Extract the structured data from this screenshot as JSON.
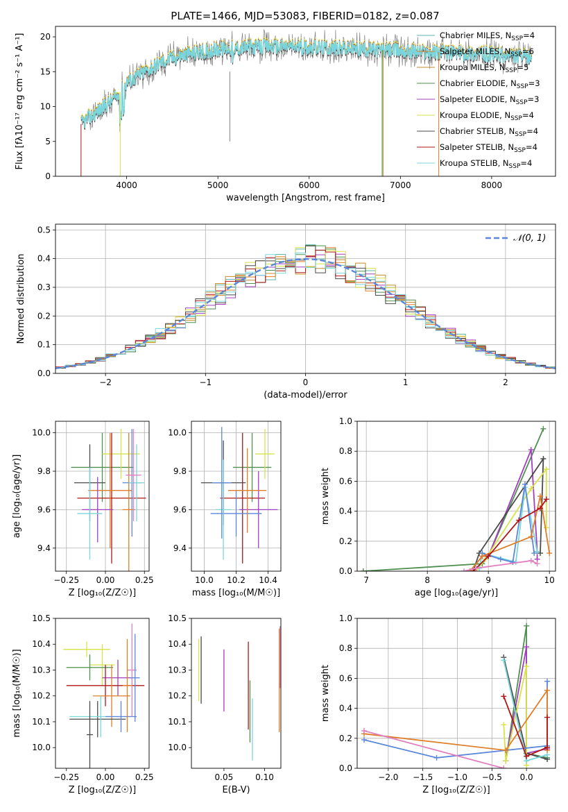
{
  "colors": {
    "Chabrier MILES": "#5bb4b0",
    "Salpeter MILES": "#e07d28",
    "Kroupa MILES": "#c58a2b",
    "Chabrier ELODIE": "#4f8f4f",
    "Salpeter ELODIE": "#a33dbd",
    "Kroupa ELODIE": "#d7e24a",
    "Chabrier STELIB": "#4a4a4a",
    "Salpeter STELIB": "#b01515",
    "Kroupa STELIB": "#78d6dc",
    "extra_blue": "#5b86d9",
    "extra_pink": "#e07fbf",
    "normal_curve": "#5b86d9"
  },
  "chart_data": [
    {
      "id": "spectrum",
      "type": "line",
      "title": "PLATE=1466, MJD=53083, FIBERID=0182, z=0.087",
      "xlabel": "wavelength [Angstrom, rest frame]",
      "ylabel": "Flux [fλ10⁻¹⁷ erg cm⁻² s⁻¹ A⁻¹]",
      "xlim": [
        3220,
        8700
      ],
      "ylim": [
        0,
        21.5
      ],
      "xticks": [
        4000,
        5000,
        6000,
        7000,
        8000
      ],
      "yticks": [
        0,
        5,
        10,
        15,
        20
      ],
      "legend": "top-right",
      "legend_entries": [
        {
          "label": "Chabrier MILES, N",
          "sub": "SSP",
          "tail": "=4"
        },
        {
          "label": "Salpeter MILES, N",
          "sub": "SSP",
          "tail": "=6"
        },
        {
          "label": "Kroupa MILES, N",
          "sub": "SSP",
          "tail": "=5"
        },
        {
          "label": "Chabrier ELODIE, N",
          "sub": "SSP",
          "tail": "=3"
        },
        {
          "label": "Salpeter ELODIE, N",
          "sub": "SSP",
          "tail": "=3"
        },
        {
          "label": "Kroupa ELODIE, N",
          "sub": "SSP",
          "tail": "=4"
        },
        {
          "label": "Chabrier STELIB, N",
          "sub": "SSP",
          "tail": "=4"
        },
        {
          "label": "Salpeter STELIB, N",
          "sub": "SSP",
          "tail": "=4"
        },
        {
          "label": "Kroupa STELIB, N",
          "sub": "SSP",
          "tail": "=4"
        }
      ],
      "continuum": {
        "x": [
          3500,
          3700,
          3900,
          4000,
          4200,
          4400,
          4600,
          4800,
          5000,
          5200,
          5400,
          5600,
          5800,
          6000,
          6200,
          6400,
          6600,
          6800,
          7000,
          7200,
          7400,
          7600,
          7800,
          8000,
          8200,
          8400
        ],
        "y": [
          7.5,
          9.5,
          11.5,
          13.5,
          15.0,
          16.5,
          17.3,
          17.8,
          18.2,
          18.4,
          18.5,
          18.6,
          18.6,
          18.5,
          18.4,
          18.3,
          18.2,
          18.1,
          18.0,
          17.9,
          17.8,
          17.7,
          17.6,
          17.4,
          17.2,
          17.0
        ]
      }
    },
    {
      "id": "residuals",
      "type": "histogram",
      "xlabel": "(data-model)/error",
      "ylabel": "Normed distribution",
      "xlim": [
        -2.5,
        2.5
      ],
      "ylim": [
        0,
        0.52
      ],
      "xticks": [
        -2,
        -1,
        0,
        1,
        2
      ],
      "xticklabels": [
        "−2",
        "−1",
        "0",
        "1",
        "2"
      ],
      "yticks": [
        0.0,
        0.1,
        0.2,
        0.3,
        0.4,
        0.5
      ],
      "yticklabels": [
        "0.0",
        "0.1",
        "0.2",
        "0.3",
        "0.4",
        "0.5"
      ],
      "bin_width": 0.1,
      "legend": "top-right",
      "normal_label": "𝒩(0, 1)",
      "normal": {
        "mean": 0,
        "sigma": 1
      }
    },
    {
      "id": "age_vs_Z",
      "type": "errorbar",
      "xlabel": "Z [log₁₀(Z/Z☉)]",
      "ylabel": "age  [log₁₀(age/yr)]",
      "xlim": [
        -0.32,
        0.28
      ],
      "ylim": [
        9.28,
        10.06
      ],
      "xticks": [
        -0.25,
        0.0,
        0.25
      ],
      "xticklabels": [
        "−0.25",
        "0.00",
        "0.25"
      ],
      "yticks": [
        9.4,
        9.6,
        9.8,
        10.0
      ],
      "yticklabels": [
        "9.4",
        "9.6",
        "9.8",
        "10.0"
      ],
      "points": [
        {
          "x": -0.02,
          "xerr": 0.2,
          "y": 9.82,
          "yerr": 0.18,
          "c": "#4f8f4f"
        },
        {
          "x": 0.1,
          "xerr": 0.12,
          "y": 9.89,
          "yerr": 0.13,
          "c": "#d7e24a"
        },
        {
          "x": -0.1,
          "xerr": 0.1,
          "y": 9.74,
          "yerr": 0.2,
          "c": "#4a4a4a"
        },
        {
          "x": 0.04,
          "xerr": 0.22,
          "y": 9.66,
          "yerr": 0.34,
          "c": "#b01515"
        },
        {
          "x": 0.03,
          "xerr": 0.14,
          "y": 9.7,
          "yerr": 0.3,
          "c": "#e07d28"
        },
        {
          "x": -0.05,
          "xerr": 0.1,
          "y": 9.6,
          "yerr": 0.17,
          "c": "#a33dbd"
        },
        {
          "x": 0.17,
          "xerr": 0.06,
          "y": 9.74,
          "yerr": 0.28,
          "c": "#5b86d9"
        },
        {
          "x": 0.15,
          "xerr": 0.04,
          "y": 9.6,
          "yerr": 0.4,
          "c": "#e07d28"
        },
        {
          "x": -0.1,
          "xerr": 0.08,
          "y": 9.58,
          "yerr": 0.24,
          "c": "#78d6dc"
        },
        {
          "x": 0.2,
          "xerr": 0.05,
          "y": 9.74,
          "yerr": 0.2,
          "c": "#78d6dc"
        },
        {
          "x": 0.18,
          "xerr": 0.05,
          "y": 9.78,
          "yerr": 0.24,
          "c": "#e07fbf"
        }
      ]
    },
    {
      "id": "age_vs_mass",
      "type": "errorbar",
      "xlabel": "mass [log₁₀(M/M☉)]",
      "ylabel": "",
      "xlim": [
        9.92,
        10.48
      ],
      "ylim": [
        9.28,
        10.06
      ],
      "xticks": [
        10.0,
        10.2,
        10.4
      ],
      "xticklabels": [
        "10.0",
        "10.2",
        "10.4"
      ],
      "yticks": [
        9.4,
        9.6,
        9.8,
        10.0
      ],
      "yticklabels": [
        "9.4",
        "9.6",
        "9.8",
        "10.0"
      ],
      "points": [
        {
          "x": 10.12,
          "xerr": 0.14,
          "y": 9.74,
          "yerr": 0.22,
          "c": "#4a4a4a"
        },
        {
          "x": 10.3,
          "xerr": 0.12,
          "y": 9.82,
          "yerr": 0.18,
          "c": "#4f8f4f"
        },
        {
          "x": 10.24,
          "xerr": 0.14,
          "y": 9.66,
          "yerr": 0.34,
          "c": "#b01515"
        },
        {
          "x": 10.34,
          "xerr": 0.12,
          "y": 9.6,
          "yerr": 0.2,
          "c": "#a33dbd"
        },
        {
          "x": 10.2,
          "xerr": 0.16,
          "y": 9.58,
          "yerr": 0.12,
          "c": "#5b86d9"
        },
        {
          "x": 10.38,
          "xerr": 0.06,
          "y": 9.89,
          "yerr": 0.13,
          "c": "#d7e24a"
        },
        {
          "x": 10.27,
          "xerr": 0.12,
          "y": 9.7,
          "yerr": 0.22,
          "c": "#e07d28"
        },
        {
          "x": 10.12,
          "xerr": 0.05,
          "y": 9.6,
          "yerr": 0.26,
          "c": "#78d6dc"
        },
        {
          "x": 10.11,
          "xerr": 0.06,
          "y": 9.74,
          "yerr": 0.29,
          "c": "#5b86d9"
        }
      ]
    },
    {
      "id": "weight_vs_age",
      "type": "line",
      "xlabel": "age  [log₁₀(age/yr)]",
      "ylabel": "mass weight",
      "xlim": [
        6.85,
        10.1
      ],
      "ylim": [
        0,
        1.0
      ],
      "xticks": [
        7,
        8,
        9,
        10
      ],
      "xticklabels": [
        "7",
        "8",
        "9",
        "10"
      ],
      "yticks": [
        0.0,
        0.2,
        0.4,
        0.6,
        0.8,
        1.0
      ],
      "yticklabels": [
        "0.0",
        "0.2",
        "0.4",
        "0.6",
        "0.8",
        "1.0"
      ],
      "series": [
        {
          "c": "#4f8f4f",
          "x": [
            6.95,
            8.9,
            9.0,
            9.9
          ],
          "y": [
            0.0,
            0.05,
            0.1,
            0.95
          ]
        },
        {
          "c": "#a33dbd",
          "x": [
            8.7,
            8.9,
            9.0,
            9.7,
            9.8,
            9.8
          ],
          "y": [
            0.0,
            0.1,
            0.1,
            0.81,
            0.13,
            0.08
          ]
        },
        {
          "c": "#4a4a4a",
          "x": [
            8.75,
            8.85,
            9.9,
            9.85
          ],
          "y": [
            0.0,
            0.12,
            0.75,
            0.12
          ]
        },
        {
          "c": "#d7e24a",
          "x": [
            8.8,
            8.95,
            9.7,
            9.95,
            9.95
          ],
          "y": [
            0.0,
            0.08,
            0.55,
            0.68,
            0.29
          ]
        },
        {
          "c": "#78d6dc",
          "x": [
            8.85,
            8.9,
            9.45,
            9.6,
            9.8
          ],
          "y": [
            0.02,
            0.12,
            0.06,
            0.56,
            0.13
          ]
        },
        {
          "c": "#5b86d9",
          "x": [
            8.9,
            9.2,
            9.4,
            9.6,
            9.75
          ],
          "y": [
            0.12,
            0.08,
            0.06,
            0.58,
            0.12
          ]
        },
        {
          "c": "#e07d28",
          "x": [
            8.7,
            8.9,
            9.7,
            9.85,
            10.0
          ],
          "y": [
            0.0,
            0.1,
            0.23,
            0.5,
            0.12
          ]
        },
        {
          "c": "#b01515",
          "x": [
            8.75,
            9.0,
            9.5,
            9.85,
            9.95
          ],
          "y": [
            0.0,
            0.1,
            0.34,
            0.42,
            0.48
          ]
        },
        {
          "c": "#e07fbf",
          "x": [
            8.6,
            8.8,
            9.7,
            9.8
          ],
          "y": [
            0.0,
            0.02,
            0.07,
            0.05
          ]
        }
      ]
    },
    {
      "id": "mass_vs_Z",
      "type": "errorbar",
      "xlabel": "Z [log₁₀(Z/Z☉)]",
      "ylabel": "mass [log₁₀(M/M☉)]",
      "xlim": [
        -0.32,
        0.28
      ],
      "ylim": [
        9.92,
        10.5
      ],
      "xticks": [
        -0.25,
        0.0,
        0.25
      ],
      "xticklabels": [
        "−0.25",
        "0.00",
        "0.25"
      ],
      "yticks": [
        10.0,
        10.1,
        10.2,
        10.3,
        10.4,
        10.5
      ],
      "yticklabels": [
        "10.0",
        "10.1",
        "10.2",
        "10.3",
        "10.4",
        "10.5"
      ],
      "points": [
        {
          "x": -0.12,
          "xerr": 0.15,
          "y": 10.38,
          "yerr": 0.03,
          "c": "#d7e24a"
        },
        {
          "x": -0.02,
          "xerr": 0.08,
          "y": 10.32,
          "yerr": 0.08,
          "c": "#d7e24a"
        },
        {
          "x": -0.1,
          "xerr": 0.15,
          "y": 10.31,
          "yerr": 0.05,
          "c": "#4f8f4f"
        },
        {
          "x": 0.08,
          "xerr": 0.1,
          "y": 10.27,
          "yerr": 0.07,
          "c": "#a33dbd"
        },
        {
          "x": 0.0,
          "xerr": 0.25,
          "y": 10.24,
          "yerr": 0.08,
          "c": "#b01515"
        },
        {
          "x": 0.04,
          "xerr": 0.12,
          "y": 10.2,
          "yerr": 0.12,
          "c": "#e07d28"
        },
        {
          "x": -0.05,
          "xerr": 0.18,
          "y": 10.11,
          "yerr": 0.07,
          "c": "#4a4a4a"
        },
        {
          "x": -0.03,
          "xerr": 0.2,
          "y": 10.12,
          "yerr": 0.08,
          "c": "#78d6dc"
        },
        {
          "x": 0.1,
          "xerr": 0.1,
          "y": 10.12,
          "yerr": 0.06,
          "c": "#5b86d9"
        },
        {
          "x": 0.17,
          "xerr": 0.03,
          "y": 10.3,
          "yerr": 0.18,
          "c": "#e07fbf"
        },
        {
          "x": 0.19,
          "xerr": 0.03,
          "y": 10.27,
          "yerr": 0.17,
          "c": "#5b86d9"
        },
        {
          "x": 0.14,
          "xerr": 0.03,
          "y": 10.24,
          "yerr": 0.18,
          "c": "#e07d28"
        },
        {
          "x": -0.1,
          "xerr": 0.02,
          "y": 10.05,
          "yerr": 0.13,
          "c": "#4a4a4a"
        }
      ]
    },
    {
      "id": "mass_vs_ebv",
      "type": "errorbar",
      "xlabel": "E(B-V)",
      "ylabel": "",
      "xlim": [
        0.01,
        0.12
      ],
      "ylim": [
        9.92,
        10.5
      ],
      "xticks": [
        0.05,
        0.1
      ],
      "xticklabels": [
        "0.05",
        "0.10"
      ],
      "yticks": [
        10.0,
        10.1,
        10.2,
        10.3,
        10.4,
        10.5
      ],
      "yticklabels": [
        "10.0",
        "10.1",
        "10.2",
        "10.3",
        "10.4",
        "10.5"
      ],
      "points": [
        {
          "x": 0.019,
          "xerr": 0,
          "y": 10.3,
          "yerr": 0.12,
          "c": "#d7e24a"
        },
        {
          "x": 0.022,
          "xerr": 0,
          "y": 10.3,
          "yerr": 0.13,
          "c": "#4a4a4a"
        },
        {
          "x": 0.05,
          "xerr": 0,
          "y": 10.26,
          "yerr": 0.12,
          "c": "#a33dbd"
        },
        {
          "x": 0.08,
          "xerr": 0,
          "y": 10.24,
          "yerr": 0.17,
          "c": "#b01515"
        },
        {
          "x": 0.085,
          "xerr": 0,
          "y": 10.07,
          "yerr": 0.12,
          "c": "#78d6dc"
        },
        {
          "x": 0.082,
          "xerr": 0,
          "y": 10.14,
          "yerr": 0.12,
          "c": "#4f8f4f"
        },
        {
          "x": 0.118,
          "xerr": 0,
          "y": 10.26,
          "yerr": 0.2,
          "c": "#e07d28"
        },
        {
          "x": 0.119,
          "xerr": 0,
          "y": 10.35,
          "yerr": 0.12,
          "c": "#e07fbf"
        }
      ]
    },
    {
      "id": "weight_vs_Z",
      "type": "line",
      "xlabel": "Z [log₁₀(Z/Z☉)]",
      "ylabel": "mass weight",
      "xlim": [
        -2.45,
        0.42
      ],
      "ylim": [
        0,
        1.0
      ],
      "xticks": [
        -2.0,
        -1.5,
        -1.0,
        -0.5,
        0.0
      ],
      "xticklabels": [
        "−2.0",
        "−1.5",
        "−1.0",
        "−0.5",
        "0.0"
      ],
      "yticks": [
        0.0,
        0.2,
        0.4,
        0.6,
        0.8,
        1.0
      ],
      "yticklabels": [
        "0.0",
        "0.2",
        "0.4",
        "0.6",
        "0.8",
        "1.0"
      ],
      "series": [
        {
          "c": "#4f8f4f",
          "x": [
            -0.3,
            0.0,
            0.0,
            0.3
          ],
          "y": [
            0.05,
            0.95,
            0.1,
            0.07
          ]
        },
        {
          "c": "#a33dbd",
          "x": [
            -0.3,
            0.0,
            0.0,
            0.3
          ],
          "y": [
            0.05,
            0.81,
            0.1,
            0.13
          ]
        },
        {
          "c": "#4a4a4a",
          "x": [
            -0.33,
            0.0,
            0.3
          ],
          "y": [
            0.74,
            0.1,
            0.06
          ]
        },
        {
          "c": "#d7e24a",
          "x": [
            -0.33,
            -0.3,
            0.0,
            0.0
          ],
          "y": [
            0.29,
            0.05,
            0.68,
            0.02
          ]
        },
        {
          "c": "#78d6dc",
          "x": [
            -0.33,
            0.0,
            0.3
          ],
          "y": [
            0.72,
            0.05,
            0.09
          ]
        },
        {
          "c": "#5b86d9",
          "x": [
            -2.35,
            -1.3,
            -0.3,
            0.3,
            0.3
          ],
          "y": [
            0.19,
            0.07,
            0.12,
            0.15,
            0.58
          ]
        },
        {
          "c": "#e07d28",
          "x": [
            -2.35,
            -0.3,
            0.3,
            0.3
          ],
          "y": [
            0.23,
            0.12,
            0.52,
            0.12
          ]
        },
        {
          "c": "#b01515",
          "x": [
            -0.33,
            0.0,
            0.3,
            0.3
          ],
          "y": [
            0.48,
            0.08,
            0.14,
            0.34
          ]
        },
        {
          "c": "#e07fbf",
          "x": [
            -2.35,
            -0.33
          ],
          "y": [
            0.25,
            0.0
          ]
        }
      ]
    }
  ]
}
